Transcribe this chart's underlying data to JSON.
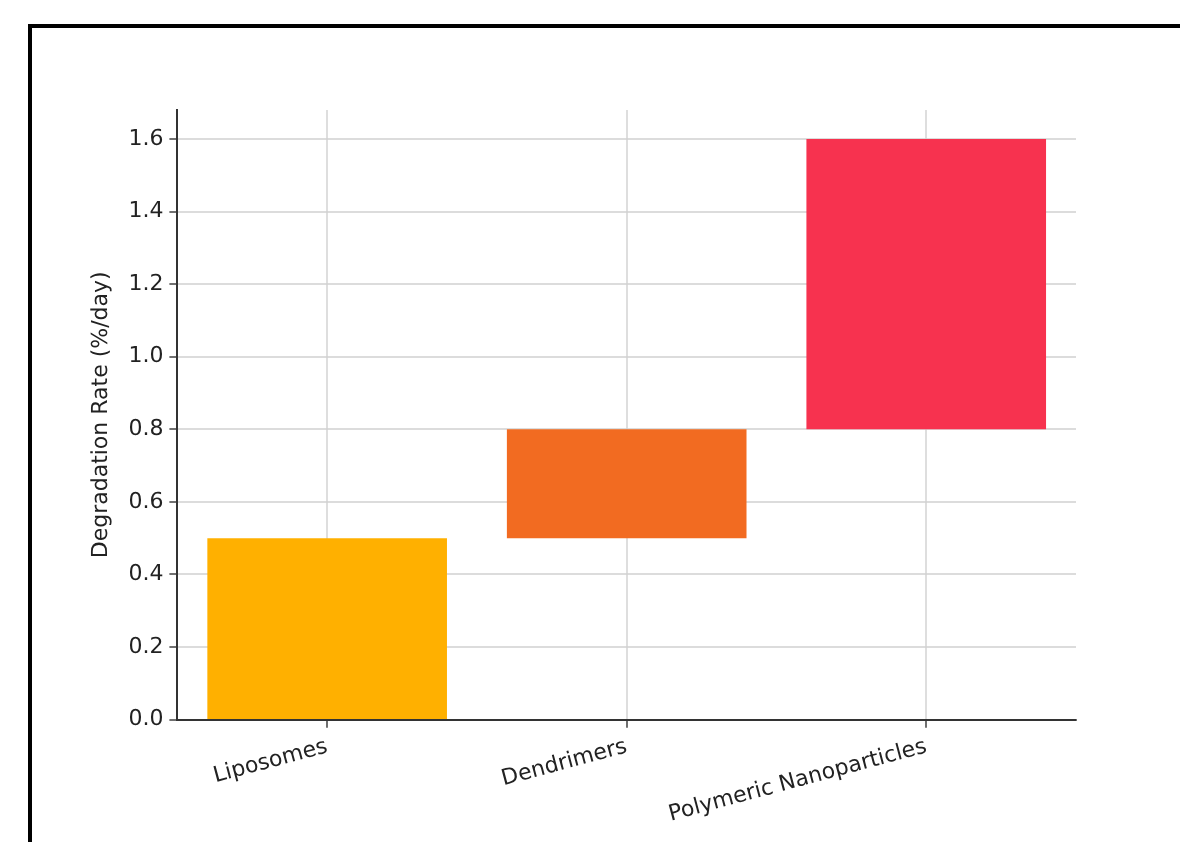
{
  "chart_data": {
    "type": "bar",
    "ylabel": "Degradation Rate (%/day)",
    "categories": [
      "Liposomes",
      "Dendrimers",
      "Polymeric Nanoparticles"
    ],
    "base": [
      0,
      0.5,
      0.8
    ],
    "values": [
      0.5,
      0.3,
      0.8
    ],
    "colors": [
      "#ffb000",
      "#f26b21",
      "#f7324f"
    ],
    "ylim": [
      0,
      1.68
    ],
    "yticks": [
      {
        "value": 0,
        "label": "0.0"
      },
      {
        "value": 0.2,
        "label": "0.2"
      },
      {
        "value": 0.4,
        "label": "0.4"
      },
      {
        "value": 0.6,
        "label": "0.6"
      },
      {
        "value": 0.8,
        "label": "0.8"
      },
      {
        "value": 1,
        "label": "1.0"
      },
      {
        "value": 1.2,
        "label": "1.2"
      },
      {
        "value": 1.4,
        "label": "1.4"
      },
      {
        "value": 1.6,
        "label": "1.6"
      }
    ],
    "grid": true
  }
}
